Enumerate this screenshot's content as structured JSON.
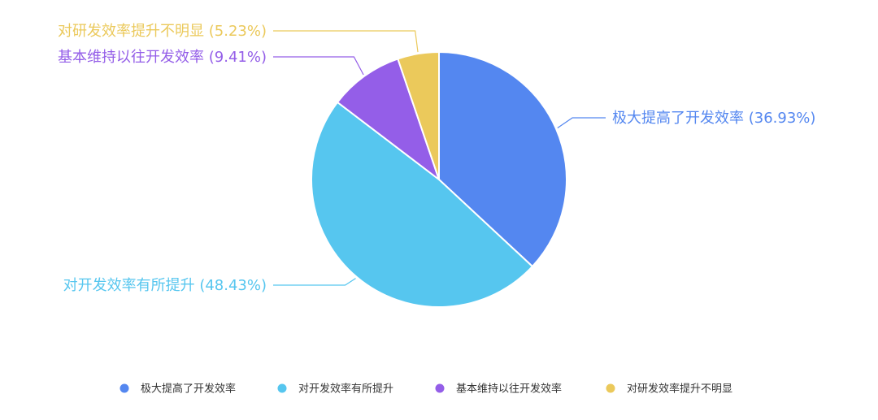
{
  "chart_data": {
    "type": "pie",
    "series": [
      {
        "name": "",
        "slices": [
          {
            "label": "极大提高了开发效率",
            "value": 36.93,
            "display": "极大提高了开发效率 (36.93%)",
            "color": "#5487f0"
          },
          {
            "label": "对开发效率有所提升",
            "value": 48.43,
            "display": "对开发效率有所提升 (48.43%)",
            "color": "#56c6ef"
          },
          {
            "label": "基本维持以往开发效率",
            "value": 9.41,
            "display": "基本维持以往开发效率 (9.41%)",
            "color": "#945ee8"
          },
          {
            "label": "对研发效率提升不明显",
            "value": 5.23,
            "display": "对研发效率提升不明显 (5.23%)",
            "color": "#ebc95b"
          }
        ]
      }
    ],
    "start_angle": "12 o'clock",
    "direction": "clockwise",
    "legend": {
      "position": "bottom",
      "items": [
        "极大提高了开发效率",
        "对开发效率有所提升",
        "基本维持以往开发效率",
        "对研发效率提升不明显"
      ]
    }
  }
}
